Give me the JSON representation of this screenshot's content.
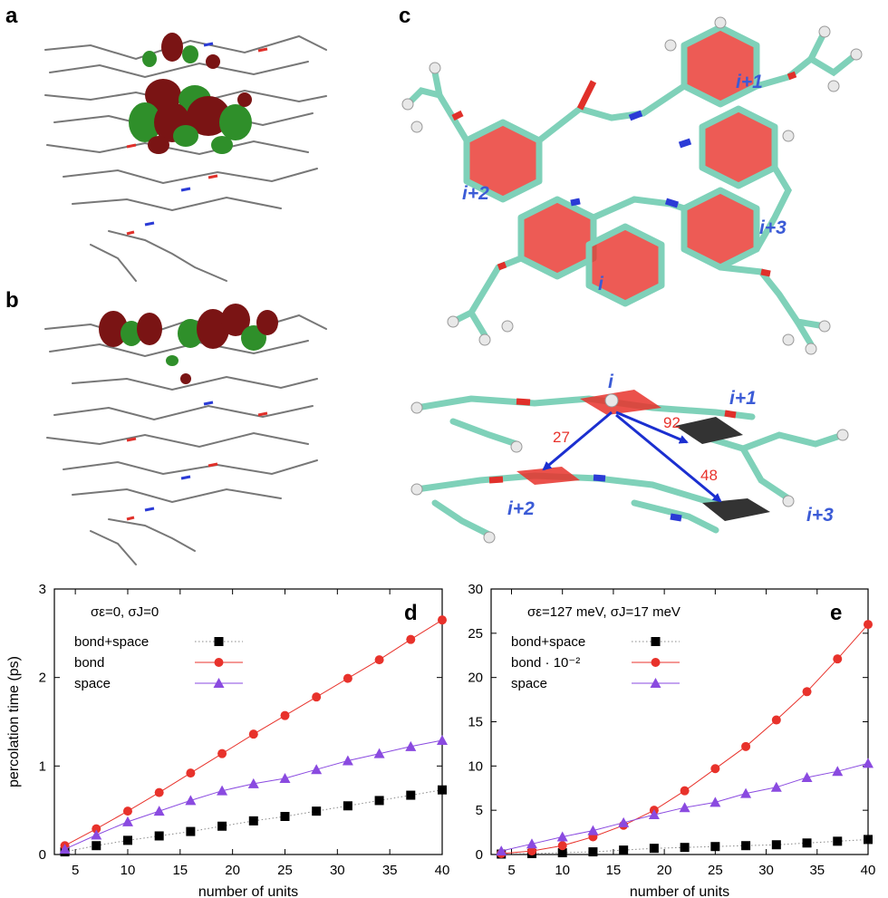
{
  "panels": {
    "a": "a",
    "b": "b",
    "c": "c",
    "d": "d",
    "e": "e"
  },
  "panel_c": {
    "top_labels": [
      "i+1",
      "i+2",
      "i+3",
      "i"
    ],
    "side_labels": [
      "i",
      "i+1",
      "i+2",
      "i+3"
    ],
    "distances": [
      "92",
      "27",
      "48"
    ],
    "colors": {
      "carbon": "#7fd1b9",
      "oxygen": "#e0302a",
      "nitrogen": "#2b3bd6",
      "hydrogen": "#e8e8e8",
      "ring": "#e8322b",
      "label": "#3b5bd6",
      "distance": "#e8322b",
      "arrow": "#1b2fd0"
    }
  },
  "panel_ab": {
    "colors": {
      "orbital_pos": "#7a1414",
      "orbital_neg": "#2f8f2a",
      "backbone": "#777777",
      "nitrogen": "#2b3bd6",
      "oxygen": "#e0302a"
    }
  },
  "chart_data": [
    {
      "type": "line",
      "panel": "d",
      "title": "σε=0,  σJ=0",
      "xlabel": "number of units",
      "ylabel": "percolation time (ps)",
      "xlim": [
        3,
        40
      ],
      "ylim": [
        0,
        3
      ],
      "xticks": [
        5,
        10,
        15,
        20,
        25,
        30,
        35,
        40
      ],
      "yticks": [
        0,
        1,
        2,
        3
      ],
      "legend_position": "top-left",
      "series": [
        {
          "name": "bond+space",
          "color": "#000000",
          "marker": "square",
          "line": "dotted",
          "x": [
            4,
            7,
            10,
            13,
            16,
            19,
            22,
            25,
            28,
            31,
            34,
            37,
            40
          ],
          "y": [
            0.03,
            0.1,
            0.16,
            0.21,
            0.26,
            0.32,
            0.38,
            0.43,
            0.49,
            0.55,
            0.61,
            0.67,
            0.73
          ]
        },
        {
          "name": "bond",
          "color": "#e8322b",
          "marker": "circle",
          "line": "solid",
          "x": [
            4,
            7,
            10,
            13,
            16,
            19,
            22,
            25,
            28,
            31,
            34,
            37,
            40
          ],
          "y": [
            0.1,
            0.29,
            0.49,
            0.7,
            0.92,
            1.14,
            1.36,
            1.57,
            1.78,
            1.99,
            2.2,
            2.43,
            2.65
          ]
        },
        {
          "name": "space",
          "color": "#8a4ae0",
          "marker": "triangle",
          "line": "solid",
          "x": [
            4,
            7,
            10,
            13,
            16,
            19,
            22,
            25,
            28,
            31,
            34,
            37,
            40
          ],
          "y": [
            0.06,
            0.22,
            0.37,
            0.49,
            0.61,
            0.72,
            0.8,
            0.86,
            0.96,
            1.06,
            1.14,
            1.22,
            1.29
          ]
        }
      ]
    },
    {
      "type": "line",
      "panel": "e",
      "title": "σε=127 meV,  σJ=17 meV",
      "xlabel": "number of units",
      "ylabel": "",
      "xlim": [
        3,
        40
      ],
      "ylim": [
        0,
        30
      ],
      "xticks": [
        5,
        10,
        15,
        20,
        25,
        30,
        35,
        40
      ],
      "yticks": [
        0,
        5,
        10,
        15,
        20,
        25,
        30
      ],
      "legend_position": "top-left",
      "series": [
        {
          "name": "bond+space",
          "color": "#000000",
          "marker": "square",
          "line": "dotted",
          "x": [
            4,
            7,
            10,
            13,
            16,
            19,
            22,
            25,
            28,
            31,
            34,
            37,
            40
          ],
          "y": [
            0.05,
            0.1,
            0.2,
            0.3,
            0.5,
            0.7,
            0.8,
            0.9,
            1.0,
            1.1,
            1.3,
            1.5,
            1.7
          ]
        },
        {
          "name": "bond · 10⁻²",
          "color": "#e8322b",
          "marker": "circle",
          "line": "solid",
          "x": [
            4,
            7,
            10,
            13,
            16,
            19,
            22,
            25,
            28,
            31,
            34,
            37,
            40
          ],
          "y": [
            0.1,
            0.4,
            1.0,
            2.0,
            3.3,
            5.0,
            7.2,
            9.7,
            12.2,
            15.2,
            18.4,
            22.1,
            26.0
          ]
        },
        {
          "name": "space",
          "color": "#8a4ae0",
          "marker": "triangle",
          "line": "solid",
          "x": [
            4,
            7,
            10,
            13,
            16,
            19,
            22,
            25,
            28,
            31,
            34,
            37,
            40
          ],
          "y": [
            0.4,
            1.2,
            2.0,
            2.7,
            3.6,
            4.5,
            5.3,
            5.9,
            6.9,
            7.6,
            8.7,
            9.4,
            10.3
          ]
        }
      ]
    }
  ]
}
